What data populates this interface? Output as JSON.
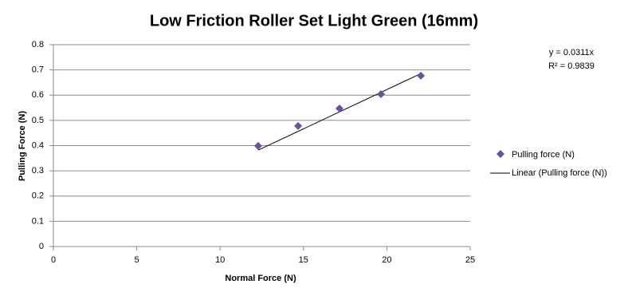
{
  "chart_data": {
    "type": "scatter",
    "title": "Low Friction Roller Set Light Green (16mm)",
    "x_label": "Normal Force (N)",
    "y_label": "Pulling Force (N)",
    "series": [
      {
        "name": "Pulling force (N)",
        "color": "#6a4fa3",
        "x": [
          12.28,
          14.68,
          17.16,
          19.65,
          22.04
        ],
        "values": [
          0.399,
          0.478,
          0.547,
          0.604,
          0.677
        ]
      }
    ],
    "trendline": {
      "name": "Linear (Pulling force (N))",
      "slope": 0.0311,
      "color": "#000000",
      "equation": "y = 0.0311x",
      "r2_label": "R² = 0.9839"
    },
    "xlim": [
      0,
      25
    ],
    "xticks": [
      0,
      5,
      10,
      15,
      20,
      25
    ],
    "ylim": [
      0,
      0.8
    ],
    "yticks": [
      0,
      0.1,
      0.2,
      0.3,
      0.4,
      0.5,
      0.6,
      0.7,
      0.8
    ],
    "grid": true,
    "legend": "right"
  }
}
